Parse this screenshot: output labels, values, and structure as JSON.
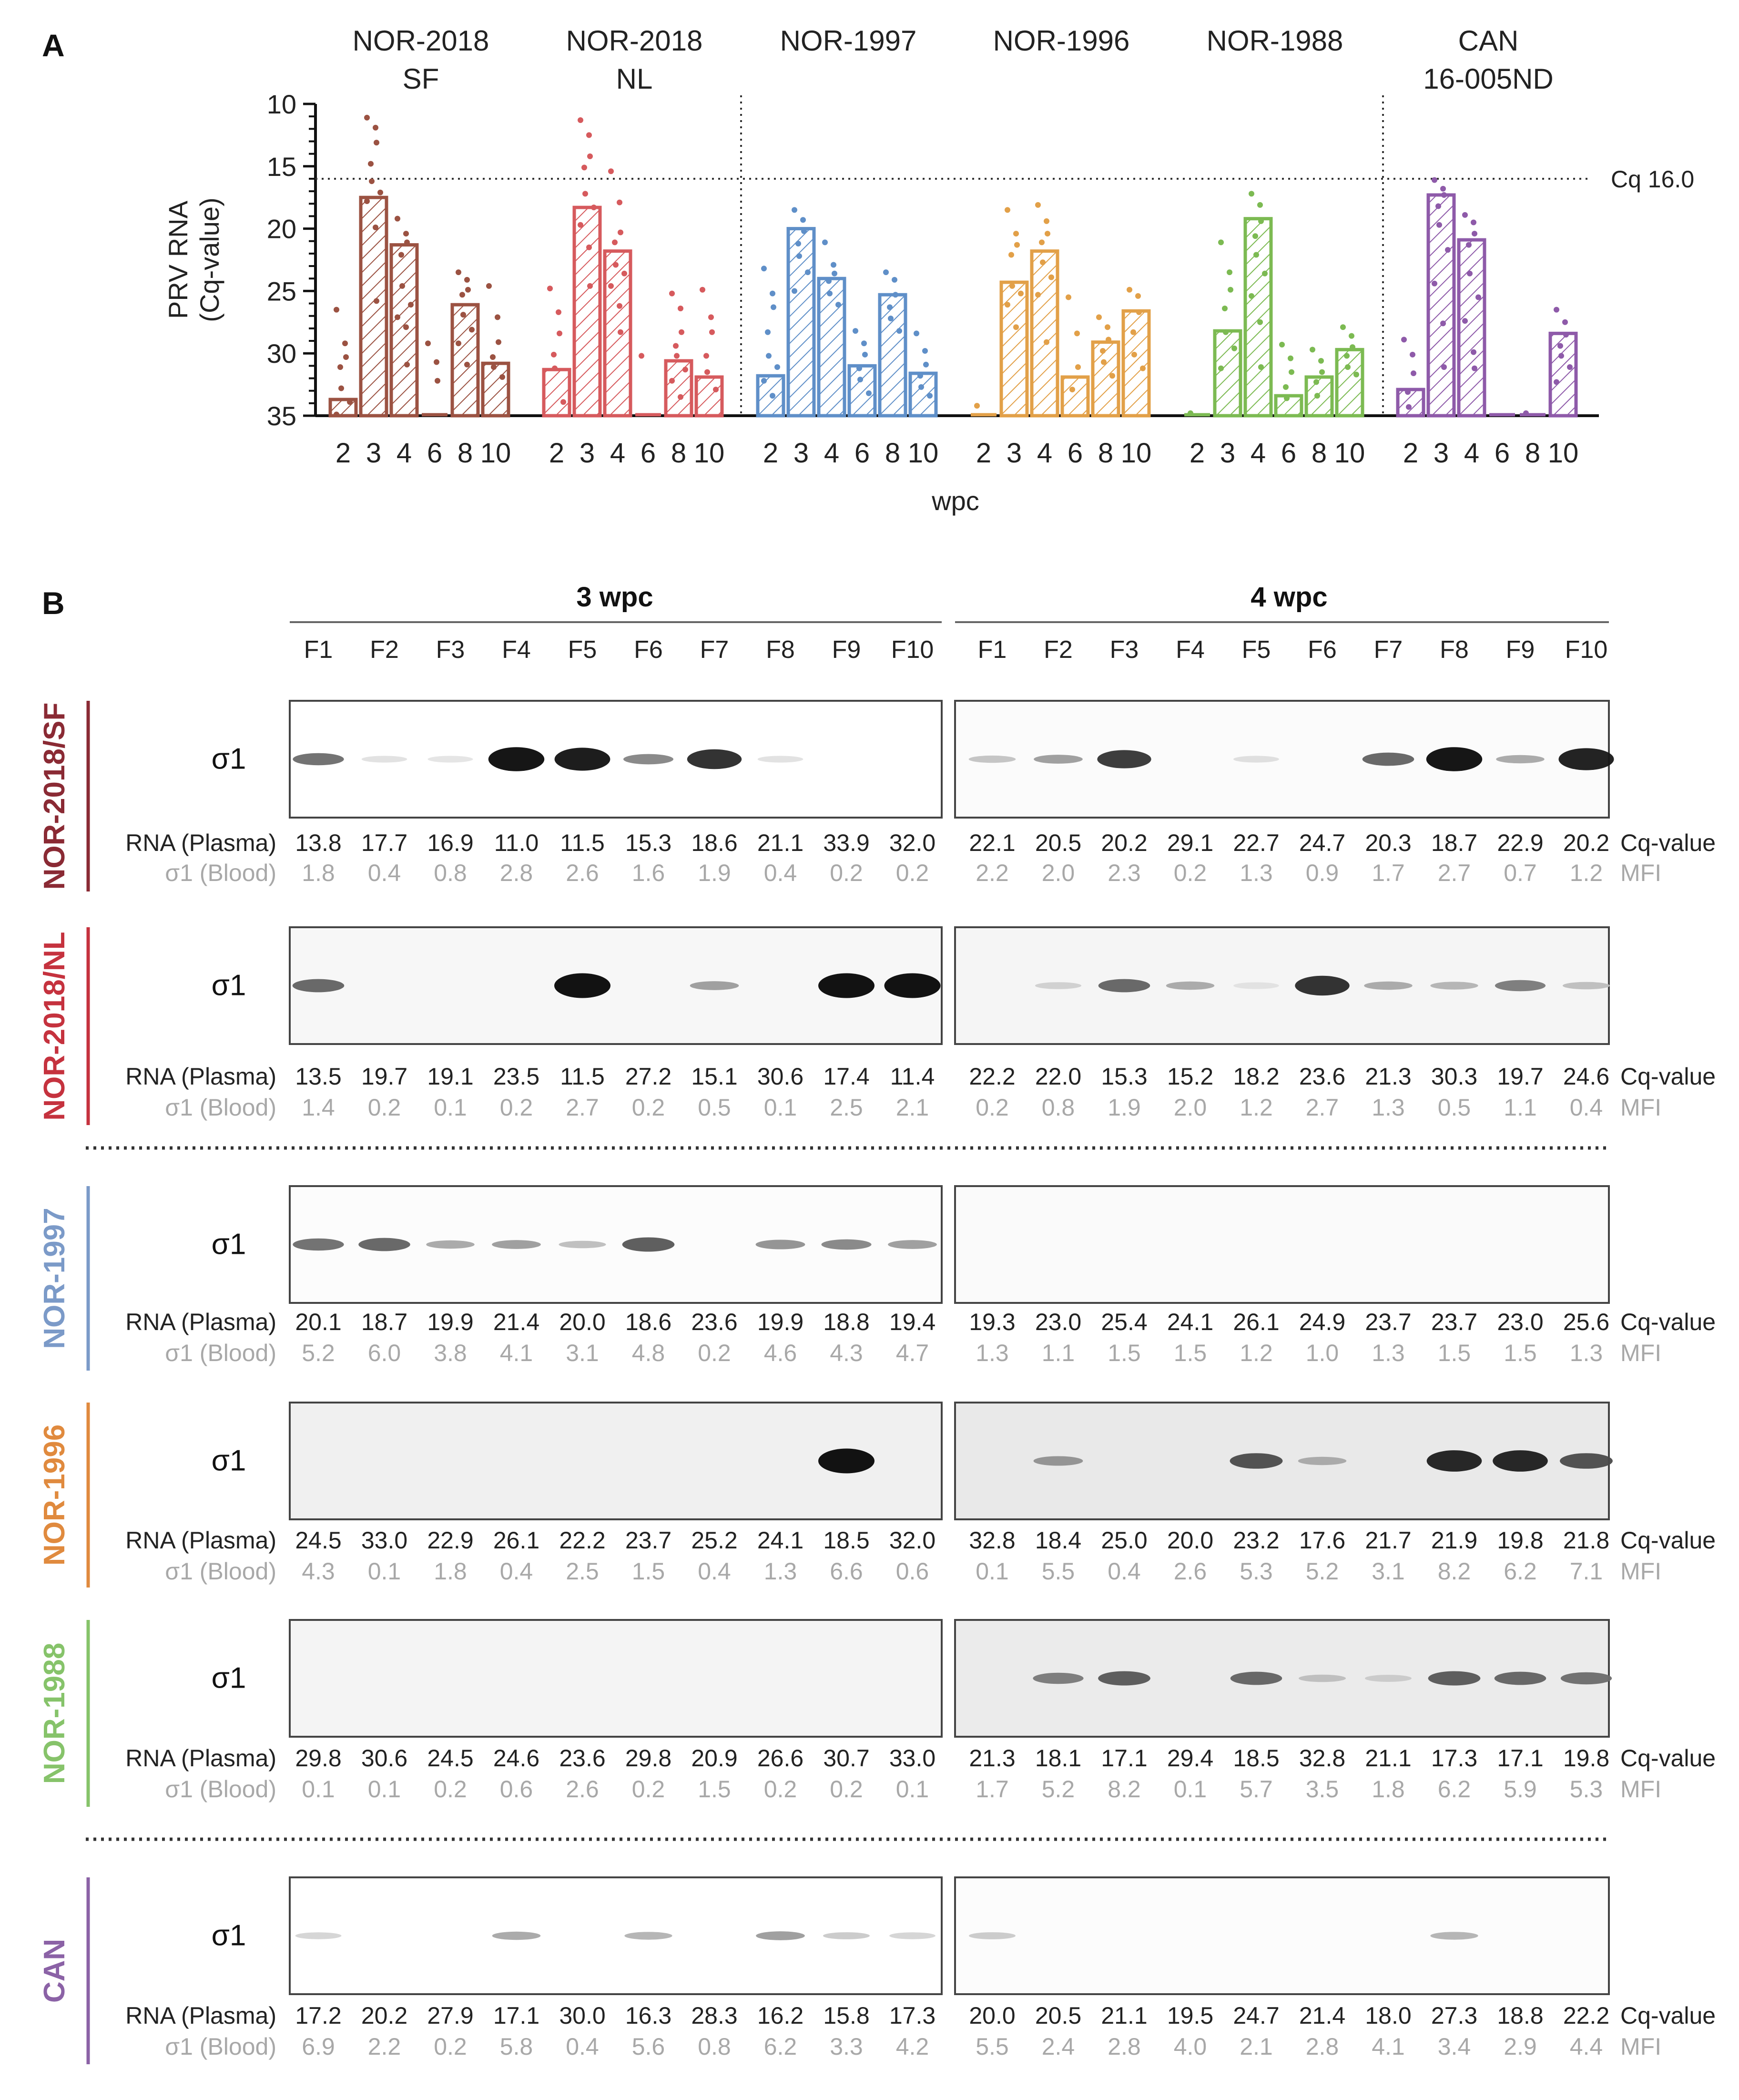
{
  "panel_a_label": "A",
  "panel_b_label": "B",
  "colors": {
    "NOR-2018 SF": "#9b5242",
    "NOR-2018 NL": "#d65a5d",
    "NOR-1997": "#5f8fc8",
    "NOR-1996": "#e2a048",
    "NOR-1988": "#7cba52",
    "CAN 16-005ND": "#8e5aa9",
    "text": "#222222",
    "mfi_text": "#a8a8a8",
    "side_NOR-2018/SF": "#8a2a34",
    "side_NOR-2018/NL": "#c5323e",
    "side_NOR-1997": "#7b9ac8",
    "side_NOR-1996": "#e08a3e",
    "side_NOR-1988": "#86c36a",
    "side_CAN": "#8b62a6"
  },
  "chart_data": {
    "type": "bar",
    "title": "",
    "xlabel": "wpc",
    "ylabel": [
      "PRV RNA",
      "(Cq-value)"
    ],
    "ylim": [
      35,
      10
    ],
    "yticks": [
      10,
      15,
      20,
      25,
      30,
      35
    ],
    "threshold": {
      "value": 16.0,
      "label": "Cq 16.0"
    },
    "categories": [
      "2",
      "3",
      "4",
      "6",
      "8",
      "10"
    ],
    "series": [
      {
        "name": "NOR-2018 SF",
        "title_lines": [
          "NOR-2018",
          "SF"
        ],
        "values": [
          33.7,
          17.5,
          21.3,
          35,
          26.1,
          30.8
        ],
        "points": [
          [
            26.5,
            29.2,
            30.3,
            31.1,
            32.8,
            33.9,
            34.9
          ],
          [
            11.1,
            11.9,
            13.1,
            14.8,
            16.2,
            17.1,
            17.8,
            19.9,
            25.8
          ],
          [
            19.2,
            20.4,
            21.1,
            22.1,
            24.6,
            26.1,
            27.1,
            27.9,
            30.9
          ],
          [
            29.2,
            30.7,
            32.2
          ],
          [
            23.5,
            24.1,
            24.9,
            25.3,
            26.9,
            28.1,
            29.2,
            30.9
          ],
          [
            24.6,
            27.1,
            29.1,
            30.3,
            31.1,
            31.9
          ]
        ]
      },
      {
        "name": "NOR-2018 NL",
        "title_lines": [
          "NOR-2018",
          "NL"
        ],
        "values": [
          31.3,
          18.3,
          21.8,
          35,
          30.6,
          31.9
        ],
        "points": [
          [
            24.8,
            26.7,
            28.4,
            30.1,
            31.2,
            33.9
          ],
          [
            11.3,
            12.5,
            14.2,
            15.1,
            17.2,
            18.3,
            19.7,
            21.5,
            24.6
          ],
          [
            15.4,
            17.9,
            20.3,
            21.1,
            22.9,
            23.6,
            24.6,
            26.2,
            28.3
          ],
          [
            30.2
          ],
          [
            25.2,
            26.4,
            28.3,
            29.4,
            30.2,
            31.3,
            32.2,
            33.5
          ],
          [
            24.9,
            27.1,
            28.3,
            30.2,
            31.5,
            32.9
          ]
        ]
      },
      {
        "name": "NOR-1997",
        "title_lines": [
          "NOR-1997"
        ],
        "values": [
          31.8,
          20.0,
          24.0,
          31.0,
          25.3,
          31.6
        ],
        "points": [
          [
            23.2,
            25.2,
            26.3,
            28.3,
            30.2,
            31.1,
            32.2,
            33.4
          ],
          [
            18.5,
            19.3,
            20.2,
            21.2,
            22.2,
            23.5,
            25.0
          ],
          [
            21.1,
            22.9,
            23.6,
            24.2,
            25.2,
            26.1
          ],
          [
            28.2,
            29.2,
            30.1,
            31.2,
            32.1,
            33.2
          ],
          [
            23.5,
            24.1,
            25.3,
            26.3,
            27.2,
            28.2
          ],
          [
            28.4,
            29.8,
            30.9,
            31.8,
            32.7,
            33.4
          ]
        ]
      },
      {
        "name": "NOR-1996",
        "title_lines": [
          "NOR-1996"
        ],
        "values": [
          35,
          24.3,
          21.8,
          31.9,
          29.1,
          26.6
        ],
        "points": [
          [
            34.2
          ],
          [
            18.5,
            20.4,
            21.3,
            22.1,
            24.6,
            25.2,
            26.1,
            27.9
          ],
          [
            18.1,
            19.4,
            20.4,
            21.1,
            22.7,
            23.9,
            25.3,
            29.1
          ],
          [
            25.5,
            28.4,
            31.1,
            32.9
          ],
          [
            27.1,
            27.9,
            28.9,
            29.8,
            30.7,
            31.8
          ],
          [
            24.9,
            25.4,
            26.7,
            28.3,
            30.1,
            31.2
          ]
        ]
      },
      {
        "name": "NOR-1988",
        "title_lines": [
          "NOR-1988"
        ],
        "values": [
          35,
          28.2,
          19.2,
          33.4,
          31.9,
          29.7
        ],
        "points": [
          [
            34.8
          ],
          [
            21.1,
            23.5,
            24.9,
            26.4,
            28.3,
            29.6,
            31.2
          ],
          [
            17.2,
            18.1,
            19.4,
            20.6,
            22.1,
            23.6,
            25.4,
            27.5,
            31.1
          ],
          [
            29.3,
            30.4,
            31.5,
            32.7,
            33.6
          ],
          [
            29.7,
            30.6,
            31.5,
            32.3,
            33.4
          ],
          [
            27.9,
            28.6,
            29.5,
            30.2,
            31.1,
            31.7
          ]
        ]
      },
      {
        "name": "CAN 16-005ND",
        "title_lines": [
          "CAN",
          "16-005ND"
        ],
        "values": [
          32.9,
          17.3,
          20.9,
          35,
          35,
          28.4
        ],
        "points": [
          [
            28.9,
            30.1,
            31.6,
            33.1,
            34.3
          ],
          [
            16.1,
            16.8,
            17.3,
            18.2,
            19.7,
            21.7,
            24.4,
            27.6,
            31.1
          ],
          [
            18.9,
            19.5,
            20.4,
            21.3,
            23.6,
            25.5,
            27.4,
            29.9,
            31.2
          ],
          [],
          [
            34.8
          ],
          [
            26.5,
            27.5,
            28.5,
            29.4,
            30.2,
            31.1,
            32.3
          ]
        ]
      }
    ]
  },
  "blot": {
    "group_labels": [
      "3 wpc",
      "4 wpc"
    ],
    "fish": [
      "F1",
      "F2",
      "F3",
      "F4",
      "F5",
      "F6",
      "F7",
      "F8",
      "F9",
      "F10"
    ],
    "band_label": "σ1",
    "row_label_rna": "RNA (Plasma)",
    "row_label_blood": "σ1 (Blood)",
    "right_label_cq": "Cq-value",
    "right_label_mfi": "MFI",
    "strains": [
      {
        "name": "NOR-2018/SF",
        "rna": [
          [
            "13.8",
            "17.7",
            "16.9",
            "11.0",
            "11.5",
            "15.3",
            "18.6",
            "21.1",
            "33.9",
            "32.0"
          ],
          [
            "22.1",
            "20.5",
            "20.2",
            "29.1",
            "22.7",
            "24.7",
            "20.3",
            "18.7",
            "22.9",
            "20.2"
          ]
        ],
        "mfi": [
          [
            "1.8",
            "0.4",
            "0.8",
            "2.8",
            "2.6",
            "1.6",
            "1.9",
            "0.4",
            "0.2",
            "0.2"
          ],
          [
            "2.2",
            "2.0",
            "2.3",
            "0.2",
            "1.3",
            "0.9",
            "1.7",
            "2.7",
            "0.7",
            "1.2"
          ]
        ],
        "bands": [
          [
            0.55,
            0.05,
            0.03,
            0.98,
            0.95,
            0.45,
            0.85,
            0.05,
            0,
            0
          ],
          [
            0.18,
            0.35,
            0.8,
            0,
            0.06,
            0,
            0.6,
            0.98,
            0.3,
            0.92
          ]
        ]
      },
      {
        "name": "NOR-2018/NL",
        "rna": [
          [
            "13.5",
            "19.7",
            "19.1",
            "23.5",
            "11.5",
            "27.2",
            "15.1",
            "30.6",
            "17.4",
            "11.4"
          ],
          [
            "22.2",
            "22.0",
            "15.3",
            "15.2",
            "18.2",
            "23.6",
            "21.3",
            "30.3",
            "19.7",
            "24.6"
          ]
        ],
        "mfi": [
          [
            "1.4",
            "0.2",
            "0.1",
            "0.2",
            "2.7",
            "0.2",
            "0.5",
            "0.1",
            "2.5",
            "2.1"
          ],
          [
            "0.2",
            "0.8",
            "1.9",
            "2.0",
            "1.2",
            "2.7",
            "1.3",
            "0.5",
            "1.1",
            "0.4"
          ]
        ],
        "bands": [
          [
            0.6,
            0,
            0,
            0,
            1,
            0,
            0.35,
            0,
            1,
            1
          ],
          [
            0,
            0.12,
            0.6,
            0.3,
            0.05,
            0.85,
            0.3,
            0.25,
            0.5,
            0.2
          ]
        ]
      },
      {
        "name": "NOR-1997",
        "rna": [
          [
            "20.1",
            "18.7",
            "19.9",
            "21.4",
            "20.0",
            "18.6",
            "23.6",
            "19.9",
            "18.8",
            "19.4"
          ],
          [
            "19.3",
            "23.0",
            "25.4",
            "24.1",
            "26.1",
            "24.9",
            "23.7",
            "23.7",
            "23.0",
            "25.6"
          ]
        ],
        "mfi": [
          [
            "5.2",
            "6.0",
            "3.8",
            "4.1",
            "3.1",
            "4.8",
            "0.2",
            "4.6",
            "4.3",
            "4.7"
          ],
          [
            "1.3",
            "1.1",
            "1.5",
            "1.5",
            "1.2",
            "1.0",
            "1.3",
            "1.5",
            "1.5",
            "1.3"
          ]
        ],
        "bands": [
          [
            0.55,
            0.6,
            0.3,
            0.35,
            0.2,
            0.65,
            0,
            0.4,
            0.45,
            0.35
          ],
          [
            0,
            0,
            0,
            0,
            0,
            0,
            0,
            0,
            0,
            0
          ]
        ]
      },
      {
        "name": "NOR-1996",
        "rna": [
          [
            "24.5",
            "33.0",
            "22.9",
            "26.1",
            "22.2",
            "23.7",
            "25.2",
            "24.1",
            "18.5",
            "32.0"
          ],
          [
            "32.8",
            "18.4",
            "25.0",
            "20.0",
            "23.2",
            "17.6",
            "21.7",
            "21.9",
            "19.8",
            "21.8"
          ]
        ],
        "mfi": [
          [
            "4.3",
            "0.1",
            "1.8",
            "0.4",
            "2.5",
            "1.5",
            "0.4",
            "1.3",
            "6.6",
            "0.6"
          ],
          [
            "0.1",
            "5.5",
            "0.4",
            "2.6",
            "5.3",
            "5.2",
            "3.1",
            "8.2",
            "6.2",
            "7.1"
          ]
        ],
        "bands": [
          [
            0,
            0,
            0,
            0,
            0,
            0,
            0,
            0,
            1,
            0
          ],
          [
            0,
            0.4,
            0,
            0,
            0.7,
            0.3,
            0,
            0.9,
            0.9,
            0.7
          ]
        ]
      },
      {
        "name": "NOR-1988",
        "rna": [
          [
            "29.8",
            "30.6",
            "24.5",
            "24.6",
            "23.6",
            "29.8",
            "20.9",
            "26.6",
            "30.7",
            "33.0"
          ],
          [
            "21.3",
            "18.1",
            "17.1",
            "29.4",
            "18.5",
            "32.8",
            "21.1",
            "17.3",
            "17.1",
            "19.8"
          ]
        ],
        "mfi": [
          [
            "0.1",
            "0.1",
            "0.2",
            "0.6",
            "2.6",
            "0.2",
            "1.5",
            "0.2",
            "0.2",
            "0.1"
          ],
          [
            "1.7",
            "5.2",
            "8.2",
            "0.1",
            "5.7",
            "3.5",
            "1.8",
            "6.2",
            "5.9",
            "5.3"
          ]
        ],
        "bands": [
          [
            0,
            0,
            0,
            0,
            0,
            0,
            0,
            0,
            0,
            0
          ],
          [
            0,
            0.5,
            0.65,
            0,
            0.6,
            0.2,
            0.15,
            0.65,
            0.6,
            0.55
          ]
        ]
      },
      {
        "name": "CAN",
        "rna": [
          [
            "17.2",
            "20.2",
            "27.9",
            "17.1",
            "30.0",
            "16.3",
            "28.3",
            "16.2",
            "15.8",
            "17.3"
          ],
          [
            "20.0",
            "20.5",
            "21.1",
            "19.5",
            "24.7",
            "21.4",
            "18.0",
            "27.3",
            "18.8",
            "22.2"
          ]
        ],
        "mfi": [
          [
            "6.9",
            "2.2",
            "0.2",
            "5.8",
            "0.4",
            "5.6",
            "0.8",
            "6.2",
            "3.3",
            "4.2"
          ],
          [
            "5.5",
            "2.4",
            "2.8",
            "4.0",
            "2.1",
            "2.8",
            "4.1",
            "3.4",
            "2.9",
            "4.4"
          ]
        ],
        "bands": [
          [
            0.1,
            0,
            0,
            0.3,
            0,
            0.25,
            0,
            0.35,
            0.15,
            0.1
          ],
          [
            0.15,
            0,
            0,
            0,
            0,
            0,
            0,
            0.25,
            0,
            0
          ]
        ]
      }
    ]
  }
}
